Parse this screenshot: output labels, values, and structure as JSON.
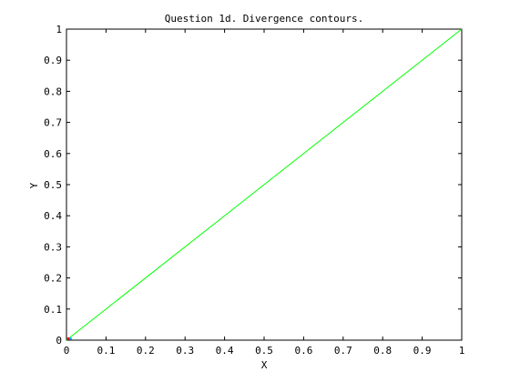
{
  "chart_data": {
    "type": "line",
    "title": "Question 1d. Divergence contours.",
    "xlabel": "X",
    "ylabel": "Y",
    "xlim": [
      0,
      1
    ],
    "ylim": [
      0,
      1
    ],
    "xticks": [
      0,
      0.1,
      0.2,
      0.3,
      0.4,
      0.5,
      0.6,
      0.7,
      0.8,
      0.9,
      1
    ],
    "yticks": [
      0,
      0.1,
      0.2,
      0.3,
      0.4,
      0.5,
      0.6,
      0.7,
      0.8,
      0.9,
      1
    ],
    "xtick_labels": [
      "0",
      "0.1",
      "0.2",
      "0.3",
      "0.4",
      "0.5",
      "0.6",
      "0.7",
      "0.8",
      "0.9",
      "1"
    ],
    "ytick_labels": [
      "0",
      "0.1",
      "0.2",
      "0.3",
      "0.4",
      "0.5",
      "0.6",
      "0.7",
      "0.8",
      "0.9",
      "1"
    ],
    "grid": false,
    "series": [
      {
        "color": "#00ff00",
        "x": [
          0,
          1
        ],
        "y": [
          0,
          1
        ]
      }
    ],
    "markers": [
      {
        "x": 0.005,
        "y": 0.005,
        "color": "#ff0000"
      },
      {
        "x": 0.01,
        "y": 0.005,
        "color": "#00aaff"
      }
    ]
  }
}
